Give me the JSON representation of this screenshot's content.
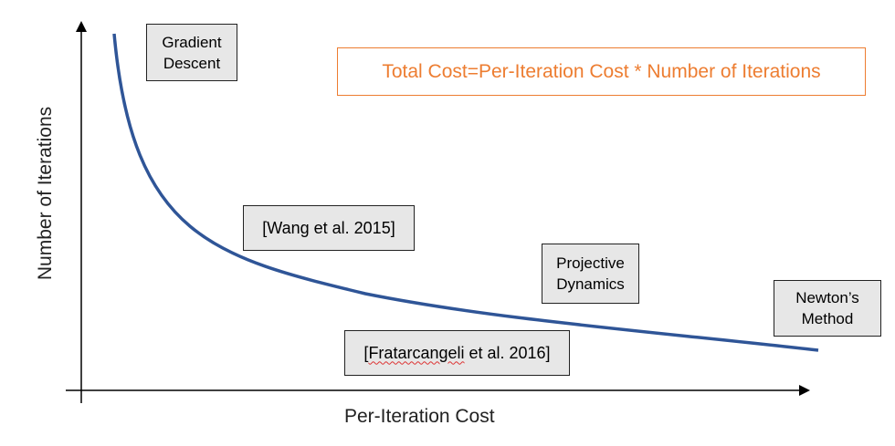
{
  "formula": "Total Cost=Per-Iteration Cost * Number of Iterations",
  "axes": {
    "x_label": "Per-Iteration Cost",
    "y_label": "Number of Iterations"
  },
  "methods": {
    "gradient_descent": [
      "Gradient",
      "Descent"
    ],
    "wang": "[Wang et al. 2015]",
    "projective_dynamics": [
      "Projective",
      "Dynamics"
    ],
    "newton": [
      "Newton’s",
      "Method"
    ],
    "fratarcangeli": {
      "bracket": "[",
      "name": "Fratarcangeli",
      "rest": " et al. 2016]"
    }
  },
  "colors": {
    "curve": "#2f5597",
    "axis": "#000000",
    "formula": "#ed7d31",
    "box_fill": "#e7e7e7"
  }
}
